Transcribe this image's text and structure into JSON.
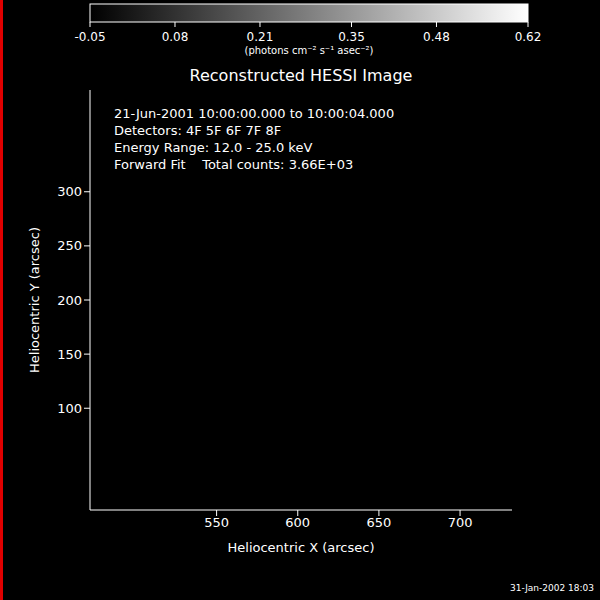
{
  "chart_data": {
    "type": "image",
    "title": "Reconstructed HESSI Image",
    "x_label": "Heliocentric X (arcsec)",
    "y_label": "Heliocentric Y (arcsec)",
    "xlim": [
      472,
      732
    ],
    "xticks": [
      550,
      600,
      650,
      700
    ],
    "ylim": [
      6,
      394
    ],
    "yticks": [
      100,
      150,
      200,
      250,
      300
    ],
    "annotations": [
      "21-Jun-2001 10:00:00.000 to 10:00:04.000",
      "Detectors: 4F 5F 6F 7F 8F",
      "Energy Range: 12.0 - 25.0 keV",
      "Forward Fit    Total counts: 3.66E+03"
    ],
    "colorbar": {
      "range": [
        -0.05,
        0.62
      ],
      "ticks": [
        -0.05,
        0.08,
        0.21,
        0.35,
        0.48,
        0.62
      ],
      "label": "(photons cm⁻² s⁻¹ asec⁻²)"
    },
    "footer": "31-Jan-2002 18:03"
  }
}
